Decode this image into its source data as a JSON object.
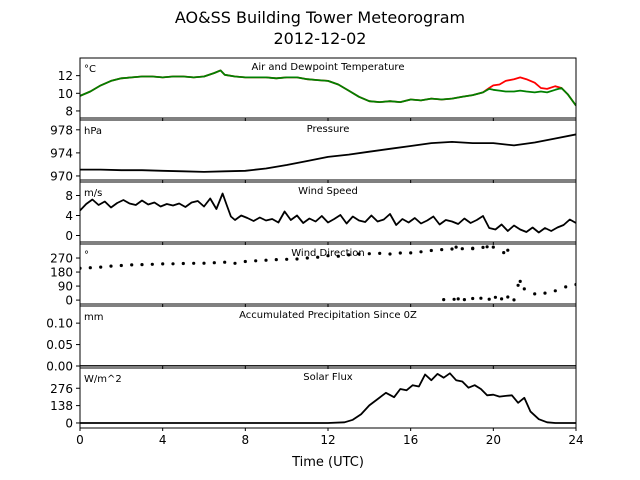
{
  "title": "AO&SS Building Tower Meteorogram",
  "subtitle": "2012-12-02",
  "xlabel": "Time (UTC)",
  "colors": {
    "temperature": "#ff0000",
    "dewpoint": "#008000",
    "line": "#000000"
  },
  "chart_data": {
    "type": "line",
    "title": "AO&SS Building Tower Meteorogram",
    "subtitle": "2012-12-02",
    "xlabel": "Time (UTC)",
    "xlim": [
      0,
      24
    ],
    "xticks": [
      0,
      4,
      8,
      12,
      16,
      20,
      24
    ],
    "panels": [
      {
        "name": "temp",
        "title": "Air and Dewpoint Temperature",
        "unit": "°C",
        "ylim": [
          7.2,
          14.0
        ],
        "yticks": [
          8,
          10,
          12
        ],
        "series": [
          {
            "color": "#ff0000",
            "x": [
              0,
              0.5,
              1,
              1.5,
              2,
              2.5,
              3,
              3.5,
              4,
              4.5,
              5,
              5.5,
              6,
              6.5,
              6.8,
              7,
              7.5,
              8,
              8.5,
              9,
              9.5,
              10,
              10.5,
              11,
              11.5,
              12,
              12.5,
              13,
              13.5,
              14,
              14.5,
              15,
              15.5,
              16,
              16.5,
              17,
              17.5,
              18,
              18.5,
              19,
              19.5,
              19.8,
              20,
              20.3,
              20.6,
              21,
              21.3,
              21.6,
              22,
              22.3,
              22.6,
              23,
              23.3,
              23.6,
              24
            ],
            "y": [
              9.7,
              10.2,
              10.9,
              11.4,
              11.7,
              11.8,
              11.9,
              11.9,
              11.8,
              11.9,
              11.9,
              11.8,
              11.9,
              12.3,
              12.6,
              12.1,
              11.9,
              11.8,
              11.8,
              11.8,
              11.7,
              11.8,
              11.8,
              11.6,
              11.5,
              11.4,
              11.0,
              10.3,
              9.6,
              9.1,
              9.0,
              9.1,
              9.0,
              9.3,
              9.2,
              9.4,
              9.3,
              9.4,
              9.6,
              9.8,
              10.1,
              10.6,
              10.9,
              11.0,
              11.4,
              11.6,
              11.8,
              11.6,
              11.2,
              10.6,
              10.5,
              10.8,
              10.6,
              9.9,
              8.6
            ]
          },
          {
            "color": "#008000",
            "x": [
              0,
              0.5,
              1,
              1.5,
              2,
              2.5,
              3,
              3.5,
              4,
              4.5,
              5,
              5.5,
              6,
              6.5,
              6.8,
              7,
              7.5,
              8,
              8.5,
              9,
              9.5,
              10,
              10.5,
              11,
              11.5,
              12,
              12.5,
              13,
              13.5,
              14,
              14.5,
              15,
              15.5,
              16,
              16.5,
              17,
              17.5,
              18,
              18.5,
              19,
              19.5,
              19.8,
              20,
              20.3,
              20.6,
              21,
              21.3,
              21.6,
              22,
              22.3,
              22.6,
              23,
              23.3,
              23.6,
              24
            ],
            "y": [
              9.7,
              10.2,
              10.9,
              11.4,
              11.7,
              11.8,
              11.9,
              11.9,
              11.8,
              11.9,
              11.9,
              11.8,
              11.9,
              12.3,
              12.6,
              12.1,
              11.9,
              11.8,
              11.8,
              11.8,
              11.7,
              11.8,
              11.8,
              11.6,
              11.5,
              11.4,
              11.0,
              10.3,
              9.6,
              9.1,
              9.0,
              9.1,
              9.0,
              9.3,
              9.2,
              9.4,
              9.3,
              9.4,
              9.6,
              9.8,
              10.1,
              10.5,
              10.4,
              10.3,
              10.2,
              10.2,
              10.3,
              10.2,
              10.1,
              10.2,
              10.1,
              10.4,
              10.6,
              9.9,
              8.6
            ]
          }
        ]
      },
      {
        "name": "pressure",
        "title": "Pressure",
        "unit": "hPa",
        "ylim": [
          969.3,
          979.7
        ],
        "yticks": [
          970,
          974,
          978
        ],
        "series": [
          {
            "color": "#000000",
            "x": [
              0,
              1,
              2,
              3,
              4,
              5,
              6,
              7,
              8,
              9,
              10,
              11,
              12,
              13,
              14,
              15,
              16,
              17,
              18,
              19,
              20,
              21,
              22,
              23,
              24
            ],
            "y": [
              971.1,
              971.1,
              971.0,
              971.0,
              970.9,
              970.8,
              970.7,
              970.8,
              970.9,
              971.3,
              971.9,
              972.6,
              973.3,
              973.7,
              974.2,
              974.7,
              975.2,
              975.7,
              975.9,
              975.7,
              975.7,
              975.3,
              975.8,
              976.5,
              977.2
            ]
          }
        ]
      },
      {
        "name": "wind-speed",
        "title": "Wind Speed",
        "unit": "m/s",
        "ylim": [
          -1.3,
          10.7
        ],
        "yticks": [
          0,
          4,
          8
        ],
        "series": [
          {
            "color": "#000000",
            "x": [
              0,
              0.3,
              0.6,
              0.9,
              1.2,
              1.5,
              1.8,
              2.1,
              2.4,
              2.7,
              3,
              3.3,
              3.6,
              3.9,
              4.2,
              4.5,
              4.8,
              5.1,
              5.4,
              5.7,
              6,
              6.3,
              6.6,
              6.9,
              7.1,
              7.3,
              7.5,
              7.8,
              8.1,
              8.4,
              8.7,
              9,
              9.3,
              9.6,
              9.9,
              10.2,
              10.5,
              10.8,
              11.1,
              11.4,
              11.7,
              12,
              12.3,
              12.6,
              12.9,
              13.2,
              13.5,
              13.8,
              14.1,
              14.4,
              14.7,
              15,
              15.3,
              15.6,
              15.9,
              16.2,
              16.5,
              16.8,
              17.1,
              17.4,
              17.7,
              18,
              18.3,
              18.6,
              18.9,
              19.2,
              19.5,
              19.8,
              20.1,
              20.4,
              20.7,
              21,
              21.3,
              21.6,
              21.9,
              22.2,
              22.5,
              22.8,
              23.1,
              23.4,
              23.7,
              24
            ],
            "y": [
              5.0,
              6.3,
              7.2,
              6.1,
              6.8,
              5.6,
              6.5,
              7.1,
              6.4,
              6.1,
              7.0,
              6.2,
              6.6,
              5.8,
              6.3,
              6.0,
              6.4,
              5.7,
              6.6,
              6.9,
              5.8,
              7.4,
              5.3,
              8.4,
              6.1,
              3.8,
              3.1,
              4.0,
              3.5,
              2.9,
              3.6,
              3.0,
              3.3,
              2.6,
              4.8,
              3.1,
              4.0,
              2.5,
              3.4,
              2.8,
              3.9,
              2.6,
              3.3,
              4.1,
              2.4,
              3.8,
              3.0,
              2.7,
              4.0,
              2.8,
              3.2,
              4.3,
              2.1,
              3.3,
              2.6,
              3.5,
              2.4,
              3.0,
              3.8,
              2.2,
              3.1,
              2.8,
              2.3,
              3.4,
              2.5,
              3.1,
              3.9,
              1.5,
              1.2,
              2.2,
              0.9,
              2.0,
              1.2,
              0.7,
              1.6,
              0.6,
              1.5,
              0.9,
              1.6,
              2.1,
              3.2,
              2.5
            ]
          }
        ]
      },
      {
        "name": "wind-direction",
        "title": "Wind Direction",
        "unit": "°",
        "ylim": [
          -25,
          360
        ],
        "yticks": [
          0,
          90,
          180,
          270
        ],
        "series": [
          {
            "color": "#000000",
            "style": "dots",
            "x": [
              0,
              0.5,
              1,
              1.5,
              2,
              2.5,
              3,
              3.5,
              4,
              4.5,
              5,
              5.5,
              6,
              6.5,
              7,
              7.5,
              8,
              8.5,
              9,
              9.5,
              10,
              10.5,
              11,
              11.5,
              12,
              12.5,
              13,
              13.5,
              14,
              14.5,
              15,
              15.5,
              16,
              16.5,
              17,
              17.5,
              18,
              18.5,
              19,
              19.5,
              20,
              20.5,
              21,
              21.2,
              21.5,
              22,
              22.5,
              23,
              23.5,
              24
            ],
            "y": [
              205,
              208,
              212,
              218,
              222,
              226,
              228,
              230,
              232,
              233,
              235,
              236,
              237,
              240,
              243,
              236,
              248,
              252,
              256,
              260,
              262,
              264,
              270,
              275,
              285,
              282,
              290,
              296,
              298,
              300,
              296,
              302,
              303,
              310,
              318,
              324,
              328,
              330,
              333,
              338,
              340,
              305,
              1,
              95,
              72,
              40,
              45,
              60,
              85,
              100
            ]
          },
          {
            "color": "#000000",
            "style": "dots",
            "x": [
              18.1,
              18.3,
              18.6,
              19,
              19.4,
              19.8,
              20.1,
              20.4,
              20.7
            ],
            "y": [
              5,
              8,
              3,
              10,
              12,
              6,
              18,
              8,
              20
            ]
          },
          {
            "color": "#000000",
            "style": "dots",
            "x": [
              17.6,
              18.2,
              19.0,
              19.7,
              20.7,
              21.3
            ],
            "y": [
              3,
              340,
              330,
              342,
              320,
              120
            ]
          }
        ]
      },
      {
        "name": "precip",
        "title": "Accumulated Precipitation Since 0Z",
        "unit": "mm",
        "ylim": [
          0,
          0.14
        ],
        "yticks": [
          0.0,
          0.05,
          0.1
        ],
        "series": [
          {
            "color": "#000000",
            "x": [
              0,
              24
            ],
            "y": [
              0,
              0
            ]
          }
        ]
      },
      {
        "name": "solar",
        "title": "Solar Flux",
        "unit": "W/m^2",
        "ylim": [
          -40,
          437
        ],
        "yticks": [
          0,
          138,
          276
        ],
        "series": [
          {
            "color": "#000000",
            "x": [
              0,
              2,
              4,
              6,
              8,
              10,
              12,
              12.8,
              13.2,
              13.6,
              14,
              14.4,
              14.8,
              15.2,
              15.5,
              15.8,
              16.1,
              16.4,
              16.7,
              17,
              17.3,
              17.6,
              17.9,
              18.2,
              18.5,
              18.8,
              19.1,
              19.4,
              19.7,
              20,
              20.3,
              20.6,
              20.9,
              21.2,
              21.5,
              21.8,
              22.2,
              22.6,
              23,
              24
            ],
            "y": [
              0,
              0,
              0,
              0,
              0,
              0,
              0,
              5,
              25,
              70,
              140,
              190,
              240,
              205,
              270,
              260,
              300,
              290,
              385,
              340,
              390,
              360,
              395,
              340,
              330,
              280,
              300,
              270,
              220,
              225,
              210,
              215,
              220,
              160,
              200,
              90,
              30,
              5,
              0,
              0
            ]
          }
        ]
      }
    ]
  }
}
